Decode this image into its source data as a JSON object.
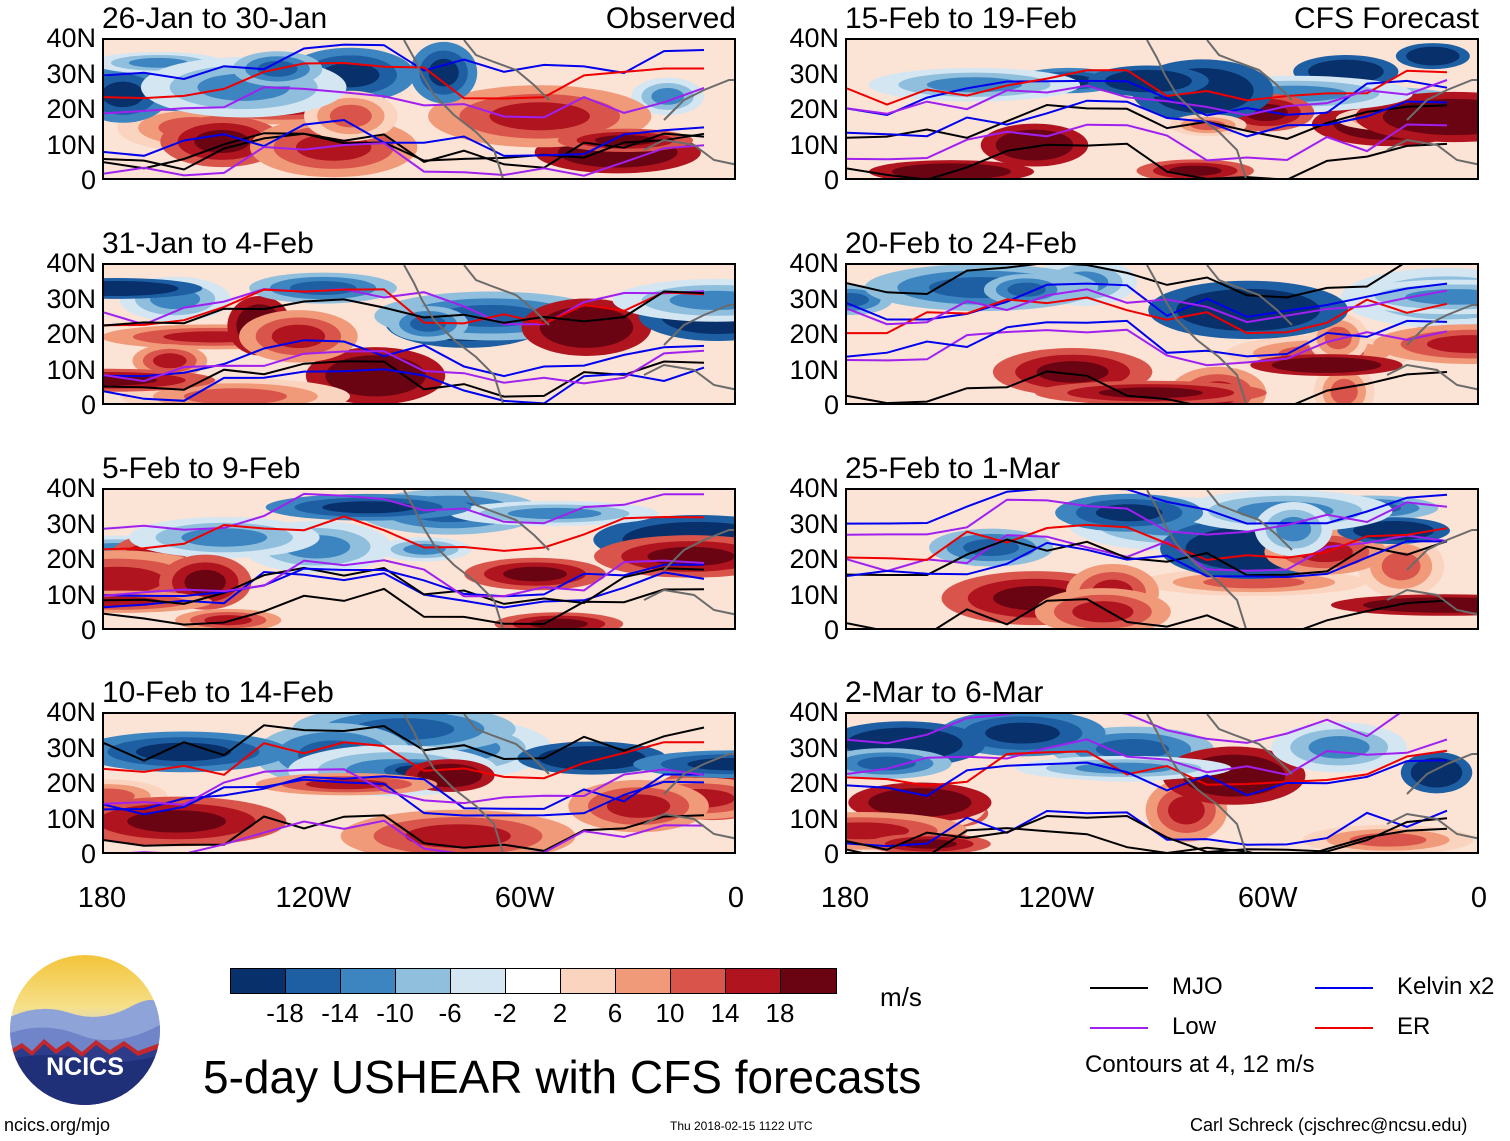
{
  "title": "5-day USHEAR with CFS forecasts",
  "column_labels": {
    "observed": "Observed",
    "forecast": "CFS Forecast"
  },
  "panels": [
    {
      "period": "26-Jan to 30-Jan",
      "label": "Observed"
    },
    {
      "period": "31-Jan to 4-Feb",
      "label": ""
    },
    {
      "period": "5-Feb to 9-Feb",
      "label": ""
    },
    {
      "period": "10-Feb to 14-Feb",
      "label": ""
    },
    {
      "period": "15-Feb to 19-Feb",
      "label": "CFS Forecast"
    },
    {
      "period": "20-Feb to 24-Feb",
      "label": ""
    },
    {
      "period": "25-Feb to 1-Mar",
      "label": ""
    },
    {
      "period": "2-Mar to 6-Mar",
      "label": ""
    }
  ],
  "y_ticks": [
    "40N",
    "30N",
    "20N",
    "10N",
    "0"
  ],
  "x_ticks": [
    "180",
    "120W",
    "60W",
    "0"
  ],
  "colorbar": {
    "labels": [
      "-18",
      "-14",
      "-10",
      "-6",
      "-2",
      "2",
      "6",
      "10",
      "14",
      "18"
    ],
    "units": "m/s",
    "colors": [
      "#08306b",
      "#1e5fa3",
      "#3d85c0",
      "#8fbfdd",
      "#d3e6f2",
      "#ffffff",
      "#fbd4c0",
      "#f09a7a",
      "#d9554b",
      "#b0141f",
      "#6b0412"
    ]
  },
  "legend": {
    "items": [
      {
        "name": "MJO",
        "color": "#000000"
      },
      {
        "name": "Kelvin x2",
        "color": "#0000ee"
      },
      {
        "name": "Low",
        "color": "#a020f0"
      },
      {
        "name": "ER",
        "color": "#ee0000"
      }
    ],
    "note": "Contours at 4, 12 m/s"
  },
  "logo_text": "NCICS",
  "footer": {
    "left": "ncics.org/mjo",
    "center": "Thu 2018-02-15 1122 UTC",
    "right": "Carl Schreck (cjschrec@ncsu.edu)"
  },
  "chart_data": {
    "type": "map",
    "variable": "5-day USHEAR",
    "units": "m/s",
    "lat_range": [
      0,
      40
    ],
    "lon_range": [
      -180,
      0
    ],
    "contour_levels": [
      -18,
      -14,
      -10,
      -6,
      -2,
      2,
      6,
      10,
      14,
      18
    ],
    "overlay_contours_ms": [
      4,
      12
    ]
  }
}
